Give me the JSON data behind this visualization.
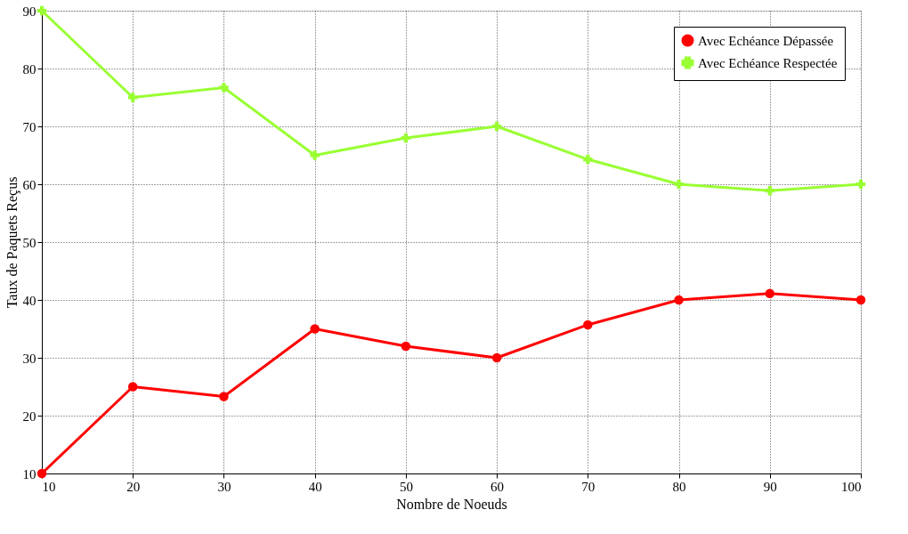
{
  "chart_data": {
    "type": "line",
    "xlabel": "Nombre de Noeuds",
    "ylabel": "Taux de Paquets Reçus",
    "x": [
      10,
      20,
      30,
      40,
      50,
      60,
      70,
      80,
      90,
      100
    ],
    "series": [
      {
        "name": "Avec Echéance Dépassée",
        "color": "#ff0000",
        "marker": "circle",
        "values": [
          10,
          25,
          23.3,
          35,
          32,
          30,
          35.7,
          40,
          41.1,
          40
        ]
      },
      {
        "name": "Avec Echéance Respectée",
        "color": "#99ff33",
        "marker": "cross",
        "values": [
          90,
          75,
          76.7,
          65,
          68,
          70,
          64.3,
          60,
          58.9,
          60
        ]
      }
    ],
    "xlim": [
      10,
      100
    ],
    "xticks": [
      10,
      20,
      30,
      40,
      50,
      60,
      70,
      80,
      90,
      100
    ],
    "ylim": [
      10,
      90
    ],
    "yticks": [
      10,
      20,
      30,
      40,
      50,
      60,
      70,
      80,
      90
    ],
    "grid": true,
    "legend": "top right",
    "line_style": "solid"
  }
}
